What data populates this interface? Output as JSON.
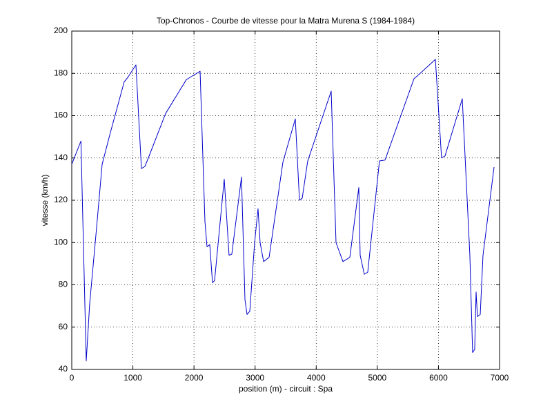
{
  "chart_data": {
    "type": "line",
    "title": "Top-Chronos - Courbe de vitesse pour la Matra Murena S (1984-1984)",
    "x_label": "position (m) - circuit : Spa",
    "y_label": "vitesse (km/h)",
    "x": [
      0,
      150,
      237,
      293,
      406,
      497,
      632,
      858,
      915,
      1050,
      1140,
      1197,
      1253,
      1535,
      1874,
      1930,
      2100,
      2179,
      2213,
      2258,
      2303,
      2337,
      2495,
      2574,
      2619,
      2777,
      2834,
      2868,
      2913,
      2992,
      3048,
      3082,
      3139,
      3229,
      3455,
      3658,
      3726,
      3771,
      3861,
      4245,
      4324,
      4437,
      4550,
      4697,
      4719,
      4787,
      4843,
      5035,
      5126,
      5600,
      5656,
      5950,
      6051,
      6108,
      6390,
      6514,
      6559,
      6593,
      6616,
      6638,
      6684,
      6729,
      6910
    ],
    "series": [
      {
        "name": "vitesse",
        "color": "#0000cc",
        "values": [
          137,
          148,
          44,
          71,
          107,
          137,
          152,
          176,
          178,
          184,
          135,
          136,
          140,
          161,
          177,
          178,
          181,
          110,
          98,
          99,
          81,
          82,
          130,
          94,
          94.5,
          131,
          73,
          66,
          67.5,
          100,
          116,
          100,
          91,
          93,
          138,
          158.5,
          120,
          121,
          138.6,
          171.6,
          100,
          91,
          93,
          126,
          94,
          85,
          86,
          138.6,
          139,
          177.5,
          178.8,
          186.6,
          140,
          141,
          168,
          94,
          48,
          49.5,
          76.6,
          65,
          66,
          94,
          135.7
        ]
      }
    ],
    "xlim": [
      0,
      7000
    ],
    "xticks": [
      0,
      1000,
      2000,
      3000,
      4000,
      5000,
      6000,
      7000
    ],
    "ylim": [
      40,
      200
    ],
    "yticks": [
      40,
      60,
      80,
      100,
      120,
      140,
      160,
      180,
      200
    ],
    "grid": true
  }
}
